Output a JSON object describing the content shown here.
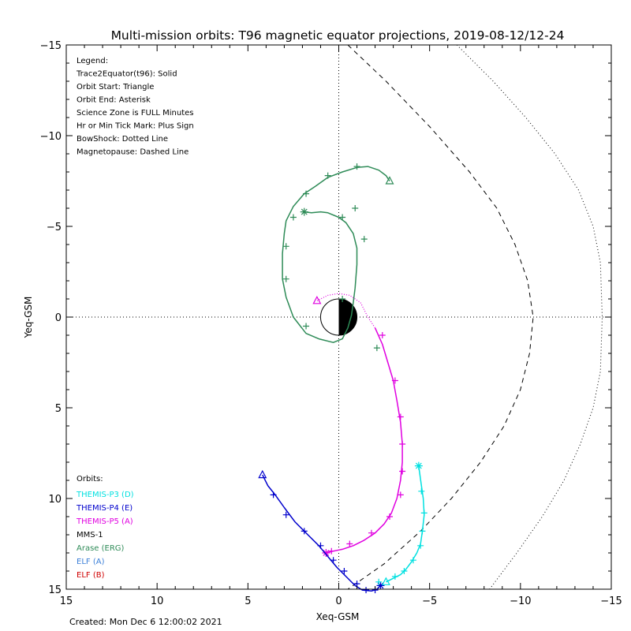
{
  "chart_data": {
    "type": "line",
    "title": "Multi-mission orbits: T96 magnetic equator projections, 2019-08-12/12-24",
    "xlabel": "Xeq-GSM",
    "ylabel": "Yeq-GSM",
    "xlim": [
      15,
      -15
    ],
    "ylim": [
      -15,
      15
    ],
    "xticks": [
      15,
      10,
      5,
      0,
      -5,
      -10,
      -15
    ],
    "yticks": [
      -15,
      -10,
      -5,
      0,
      5,
      10,
      15
    ],
    "legend_lines": [
      "Legend:",
      "Trace2Equator(t96): Solid",
      "Orbit Start: Triangle",
      "Orbit End: Asterisk",
      "Science Zone is FULL Minutes",
      "Hr or Min Tick Mark: Plus Sign",
      "BowShock: Dotted Line",
      "Magnetopause: Dashed Line"
    ],
    "orbits_header": "Orbits:",
    "orbit_legend": [
      {
        "label": "THEMIS-P3 (D)",
        "color": "#00e0e0"
      },
      {
        "label": "THEMIS-P4 (E)",
        "color": "#0000cc"
      },
      {
        "label": "THEMIS-P5 (A)",
        "color": "#e000e0"
      },
      {
        "label": "MMS-1",
        "color": "#000000"
      },
      {
        "label": "Arase (ERG)",
        "color": "#2e8b57"
      },
      {
        "label": "ELF (A)",
        "color": "#3b7fd8"
      },
      {
        "label": "ELF (B)",
        "color": "#d00000"
      }
    ],
    "created": "Created: Mon Dec  6 12:00:02 2021",
    "series": [
      {
        "name": "Arase (ERG)",
        "color": "#2e8b57",
        "start": [
          -2.8,
          -7.5
        ],
        "end": [
          1.9,
          -5.8
        ],
        "points": [
          [
            -2.8,
            -7.5
          ],
          [
            -2.6,
            -7.8
          ],
          [
            -2.2,
            -8.1
          ],
          [
            -1.6,
            -8.3
          ],
          [
            -1.0,
            -8.25
          ],
          [
            -0.2,
            -8.0
          ],
          [
            0.6,
            -7.7
          ],
          [
            1.3,
            -7.2
          ],
          [
            1.9,
            -6.8
          ],
          [
            2.5,
            -6.1
          ],
          [
            2.9,
            -5.3
          ],
          [
            3.0,
            -4.6
          ],
          [
            3.1,
            -3.5
          ],
          [
            3.1,
            -2.1
          ],
          [
            2.9,
            -1.1
          ],
          [
            2.5,
            0.0
          ],
          [
            1.8,
            0.9
          ],
          [
            1.1,
            1.2
          ],
          [
            0.3,
            1.4
          ],
          [
            -0.2,
            1.2
          ],
          [
            -0.5,
            0.6
          ],
          [
            -0.7,
            -0.1
          ],
          [
            -0.8,
            -0.8
          ],
          [
            -0.9,
            -1.6
          ],
          [
            -1.0,
            -2.9
          ],
          [
            -1.0,
            -3.8
          ],
          [
            -0.8,
            -4.6
          ],
          [
            -0.4,
            -5.2
          ],
          [
            0.0,
            -5.5
          ],
          [
            0.6,
            -5.75
          ],
          [
            1.0,
            -5.8
          ],
          [
            1.5,
            -5.75
          ],
          [
            1.9,
            -5.8
          ]
        ],
        "ticks": [
          [
            -1.0,
            -8.3
          ],
          [
            0.6,
            -7.8
          ],
          [
            1.8,
            -6.8
          ],
          [
            2.5,
            -5.5
          ],
          [
            2.9,
            -3.9
          ],
          [
            2.9,
            -2.1
          ],
          [
            1.8,
            0.5
          ],
          [
            -2.1,
            1.7
          ],
          [
            -0.2,
            -1.0
          ],
          [
            -0.2,
            -5.5
          ],
          [
            -1.4,
            -4.3
          ],
          [
            -0.9,
            -6.0
          ]
        ]
      },
      {
        "name": "THEMIS-P5 (A)",
        "color": "#e000e0",
        "start": [
          1.2,
          -0.9
        ],
        "end": [
          0.7,
          13.0
        ],
        "dotted": [
          [
            1.2,
            -0.9
          ],
          [
            0.6,
            -1.2
          ],
          [
            0.0,
            -1.3
          ],
          [
            -0.6,
            -1.2
          ],
          [
            -1.2,
            -0.8
          ],
          [
            -1.6,
            0.0
          ],
          [
            -2.0,
            0.6
          ]
        ],
        "points": [
          [
            -2.0,
            0.6
          ],
          [
            -2.4,
            1.5
          ],
          [
            -2.7,
            2.5
          ],
          [
            -3.0,
            3.5
          ],
          [
            -3.2,
            4.6
          ],
          [
            -3.4,
            5.8
          ],
          [
            -3.5,
            7.0
          ],
          [
            -3.5,
            8.0
          ],
          [
            -3.4,
            9.0
          ],
          [
            -3.2,
            10.0
          ],
          [
            -2.9,
            10.8
          ],
          [
            -2.5,
            11.4
          ],
          [
            -2.0,
            11.9
          ],
          [
            -1.4,
            12.3
          ],
          [
            -0.8,
            12.6
          ],
          [
            -0.2,
            12.8
          ],
          [
            0.3,
            12.9
          ],
          [
            0.7,
            13.0
          ]
        ],
        "ticks": [
          [
            -2.4,
            1.0
          ],
          [
            -3.1,
            3.5
          ],
          [
            -3.4,
            5.5
          ],
          [
            -3.5,
            7.0
          ],
          [
            -3.5,
            8.5
          ],
          [
            -3.4,
            9.8
          ],
          [
            -2.8,
            11.0
          ],
          [
            -1.8,
            11.9
          ],
          [
            -0.6,
            12.5
          ],
          [
            0.4,
            12.9
          ]
        ]
      },
      {
        "name": "THEMIS-P4 (E)",
        "color": "#0000cc",
        "start": [
          4.2,
          8.7
        ],
        "end": [
          -2.3,
          14.8
        ],
        "points": [
          [
            4.2,
            8.7
          ],
          [
            3.9,
            9.3
          ],
          [
            3.5,
            9.8
          ],
          [
            3.0,
            10.5
          ],
          [
            2.4,
            11.3
          ],
          [
            1.7,
            12.0
          ],
          [
            1.1,
            12.6
          ],
          [
            0.6,
            13.2
          ],
          [
            0.1,
            13.8
          ],
          [
            -0.4,
            14.3
          ],
          [
            -0.9,
            14.8
          ],
          [
            -1.3,
            15.05
          ],
          [
            -1.8,
            15.1
          ],
          [
            -2.1,
            15.0
          ],
          [
            -2.3,
            14.8
          ]
        ],
        "ticks": [
          [
            3.6,
            9.8
          ],
          [
            2.9,
            10.9
          ],
          [
            1.9,
            11.8
          ],
          [
            1.0,
            12.6
          ],
          [
            0.3,
            13.4
          ],
          [
            -0.3,
            14.0
          ],
          [
            -1.0,
            14.7
          ],
          [
            -1.5,
            15.05
          ],
          [
            -2.0,
            15.05
          ]
        ]
      },
      {
        "name": "THEMIS-P3 (D)",
        "color": "#00e0e0",
        "start": [
          -2.6,
          14.6
        ],
        "end": [
          -4.4,
          8.2
        ],
        "points": [
          [
            -2.6,
            14.6
          ],
          [
            -3.0,
            14.4
          ],
          [
            -3.4,
            14.2
          ],
          [
            -3.7,
            13.9
          ],
          [
            -4.0,
            13.5
          ],
          [
            -4.3,
            13.0
          ],
          [
            -4.5,
            12.5
          ],
          [
            -4.6,
            11.8
          ],
          [
            -4.7,
            10.9
          ],
          [
            -4.65,
            10.0
          ],
          [
            -4.55,
            9.3
          ],
          [
            -4.4,
            8.2
          ]
        ],
        "ticks": [
          [
            -2.2,
            14.6
          ],
          [
            -3.1,
            14.3
          ],
          [
            -3.6,
            14.0
          ],
          [
            -4.1,
            13.4
          ],
          [
            -4.5,
            12.6
          ],
          [
            -4.6,
            11.8
          ],
          [
            -4.7,
            10.8
          ],
          [
            -4.55,
            9.6
          ]
        ]
      }
    ],
    "magnetopause": [
      [
        -0.5,
        -15.0
      ],
      [
        -2.6,
        -13.0
      ],
      [
        -5.0,
        -10.5
      ],
      [
        -7.2,
        -8.0
      ],
      [
        -8.7,
        -6.0
      ],
      [
        -9.7,
        -4.0
      ],
      [
        -10.4,
        -2.0
      ],
      [
        -10.7,
        0.0
      ],
      [
        -10.5,
        2.0
      ],
      [
        -10.0,
        4.0
      ],
      [
        -9.1,
        6.0
      ],
      [
        -7.8,
        8.0
      ],
      [
        -6.2,
        10.0
      ],
      [
        -4.5,
        11.8
      ],
      [
        -2.5,
        13.6
      ],
      [
        -0.5,
        15.0
      ]
    ],
    "bowshock": [
      [
        -6.5,
        -15.0
      ],
      [
        -8.5,
        -13.0
      ],
      [
        -10.3,
        -11.0
      ],
      [
        -11.9,
        -9.0
      ],
      [
        -13.2,
        -7.0
      ],
      [
        -14.0,
        -5.0
      ],
      [
        -14.4,
        -3.0
      ],
      [
        -14.5,
        0.0
      ],
      [
        -14.4,
        3.0
      ],
      [
        -14.0,
        5.0
      ],
      [
        -13.3,
        7.0
      ],
      [
        -12.4,
        9.0
      ],
      [
        -11.2,
        11.0
      ],
      [
        -9.8,
        13.0
      ],
      [
        -8.3,
        15.0
      ]
    ]
  }
}
